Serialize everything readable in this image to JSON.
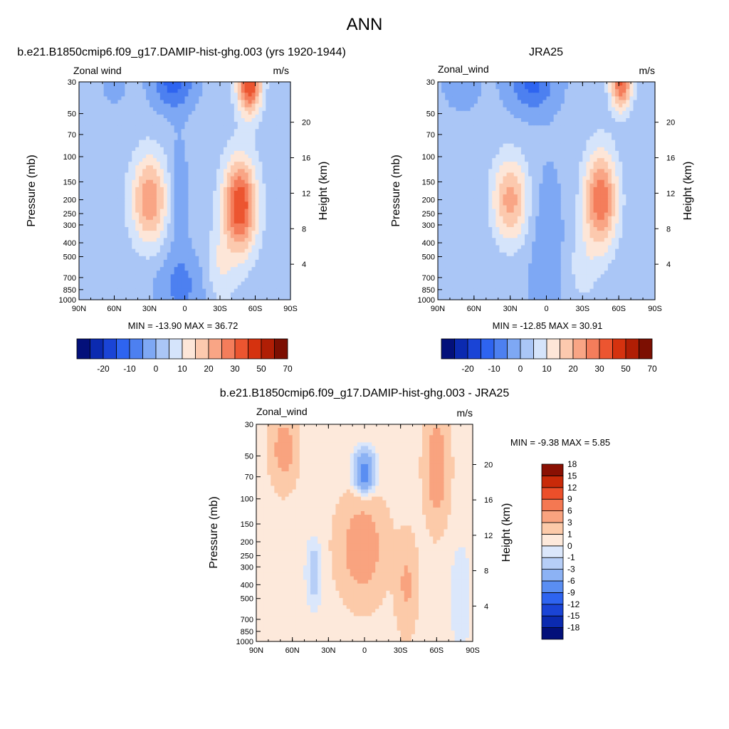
{
  "page": {
    "title": "ANN"
  },
  "colors": {
    "cmap_abs": [
      "#03107a",
      "#0b2ab0",
      "#1a44d6",
      "#2e64f0",
      "#4d80f0",
      "#7ea8f4",
      "#aac6f6",
      "#d5e4fb",
      "#fde6d8",
      "#fcc9ae",
      "#f9a585",
      "#f47d5b",
      "#ec5530",
      "#d5320f",
      "#b01e05",
      "#7c0f02"
    ],
    "cmap_diff": [
      "#03107a",
      "#0b2ab0",
      "#1a44d6",
      "#2e64f0",
      "#5a8ef2",
      "#8cb2f4",
      "#b6cef7",
      "#dbe7fb",
      "#fde9db",
      "#fccaa9",
      "#f9a37f",
      "#f47852",
      "#ec4f2a",
      "#c92a09",
      "#8a1003"
    ]
  },
  "chart_data": [
    {
      "type": "heatmap",
      "title": "b.e21.B1850cmip6.f09_g17.DAMIP-hist-ghg.003 (yrs 1920-1944)",
      "left_label": "Zonal wind",
      "units": "m/s",
      "ylabel": "Pressure (mb)",
      "ylabel_right": "Height (km)",
      "x_ticks": [
        "90N",
        "60N",
        "30N",
        "0",
        "30S",
        "60S",
        "90S"
      ],
      "y_ticks": [
        "30",
        "50",
        "70",
        "100",
        "150",
        "200",
        "250",
        "300",
        "400",
        "500",
        "700",
        "850",
        "1000"
      ],
      "height_ticks": [
        "4",
        "8",
        "12",
        "16",
        "20"
      ],
      "stats": "MIN = -13.90  MAX =  36.72",
      "min": -13.9,
      "max": 36.72,
      "colorbar_levels": [
        -25,
        -20,
        -15,
        -10,
        -5,
        0,
        5,
        10,
        15,
        20,
        25,
        30,
        40,
        50,
        60,
        70
      ],
      "colorbar_labels": [
        "-20",
        "-10",
        "0",
        "10",
        "20",
        "30",
        "50",
        "70"
      ],
      "features": [
        {
          "lat": 30,
          "p": 200,
          "peak": 25
        },
        {
          "lat": -40,
          "p": 200,
          "peak": 34
        },
        {
          "lat": -55,
          "p": 200,
          "peak": 34
        },
        {
          "lat": -55,
          "p": 30,
          "peak": 37
        },
        {
          "lat": 10,
          "p": 30,
          "peak": -14
        },
        {
          "lat": 5,
          "p": 700,
          "peak": -8
        }
      ]
    },
    {
      "type": "heatmap",
      "title": "JRA25",
      "left_label": "Zonal_wind",
      "units": "m/s",
      "ylabel": "Pressure (mb)",
      "ylabel_right": "Height (km)",
      "x_ticks": [
        "90N",
        "60N",
        "30N",
        "0",
        "30S",
        "60S",
        "90S"
      ],
      "y_ticks": [
        "30",
        "50",
        "70",
        "100",
        "150",
        "200",
        "250",
        "300",
        "400",
        "500",
        "700",
        "850",
        "1000"
      ],
      "height_ticks": [
        "4",
        "8",
        "12",
        "16",
        "20"
      ],
      "stats": "MIN = -12.85  MAX =  30.91",
      "min": -12.85,
      "max": 30.91,
      "colorbar_levels": [
        -25,
        -20,
        -15,
        -10,
        -5,
        0,
        5,
        10,
        15,
        20,
        25,
        30,
        40,
        50,
        60,
        70
      ],
      "colorbar_labels": [
        "-20",
        "-10",
        "0",
        "10",
        "20",
        "30",
        "50",
        "70"
      ],
      "features": [
        {
          "lat": 30,
          "p": 200,
          "peak": 22
        },
        {
          "lat": -45,
          "p": 200,
          "peak": 30
        },
        {
          "lat": -60,
          "p": 30,
          "peak": 31
        },
        {
          "lat": 10,
          "p": 30,
          "peak": -13
        },
        {
          "lat": 0,
          "p": 700,
          "peak": -6
        }
      ]
    },
    {
      "type": "heatmap",
      "title": "b.e21.B1850cmip6.f09_g17.DAMIP-hist-ghg.003 - JRA25",
      "left_label": "Zonal_wind",
      "units": "m/s",
      "ylabel": "Pressure (mb)",
      "ylabel_right": "Height (km)",
      "x_ticks": [
        "90N",
        "60N",
        "30N",
        "0",
        "30S",
        "60S",
        "90S"
      ],
      "y_ticks": [
        "30",
        "50",
        "70",
        "100",
        "150",
        "200",
        "250",
        "300",
        "400",
        "500",
        "700",
        "850",
        "1000"
      ],
      "height_ticks": [
        "4",
        "8",
        "12",
        "16",
        "20"
      ],
      "stats": "MIN =  -9.38  MAX =   5.85",
      "min": -9.38,
      "max": 5.85,
      "colorbar_levels": [
        -18,
        -15,
        -12,
        -9,
        -6,
        -3,
        -1,
        0,
        1,
        3,
        6,
        9,
        12,
        15,
        18
      ],
      "colorbar_labels": [
        "-18",
        "-15",
        "-12",
        "-9",
        "-6",
        "-3",
        "-1",
        "0",
        "1",
        "3",
        "6",
        "9",
        "12",
        "15",
        "18"
      ],
      "features": [
        {
          "lat": 0,
          "p": 200,
          "peak": 5
        },
        {
          "lat": -60,
          "p": 70,
          "peak": 5
        },
        {
          "lat": 65,
          "p": 50,
          "peak": 4
        },
        {
          "lat": 0,
          "p": 70,
          "peak": -9
        },
        {
          "lat": 40,
          "p": 300,
          "peak": -2
        }
      ]
    }
  ]
}
